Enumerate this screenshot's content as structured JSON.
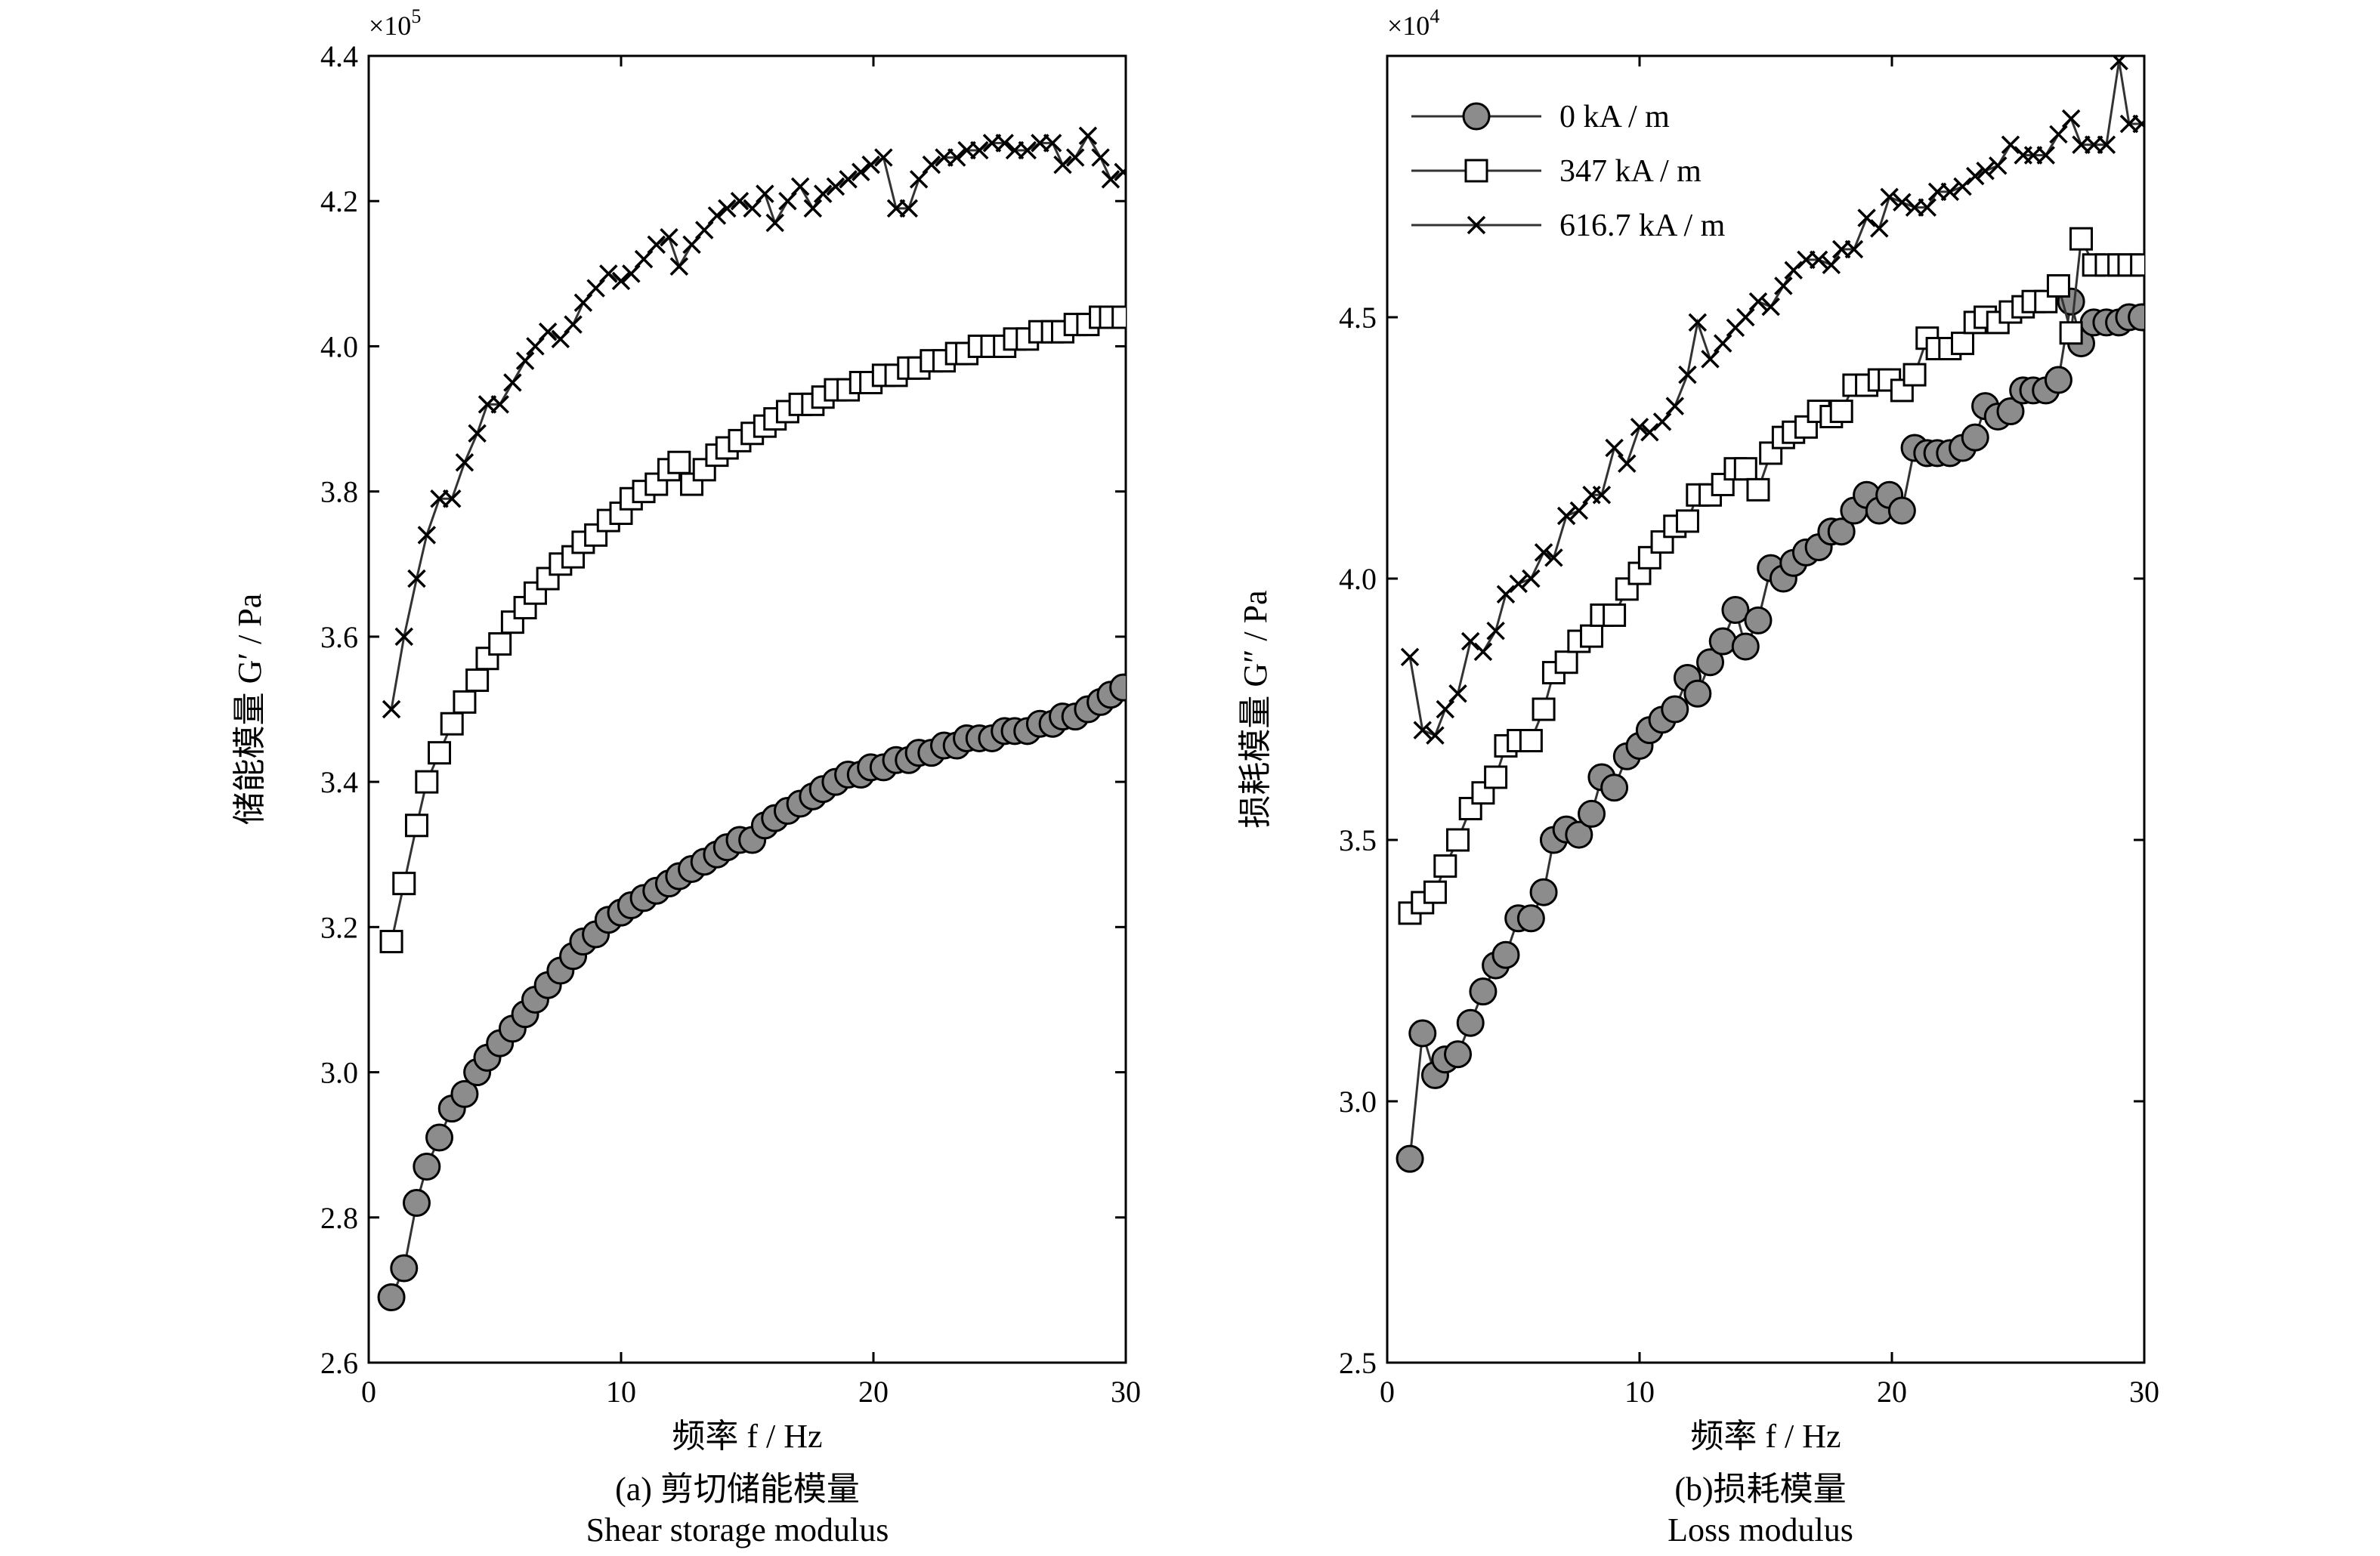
{
  "chart_data": [
    {
      "type": "line",
      "xlabel": "频率 f / Hz",
      "ylabel": "储能模量 G′ / Pa",
      "y_multiplier": "×10",
      "y_multiplier_exp": "5",
      "caption_zh": "(a) 剪切储能模量",
      "caption_en": "Shear storage modulus",
      "xlim": [
        0,
        30
      ],
      "ylim": [
        2.6,
        4.4
      ],
      "xticks": [
        0,
        10,
        20,
        30
      ],
      "yticks": [
        2.6,
        2.8,
        3.0,
        3.2,
        3.4,
        3.6,
        3.8,
        4.0,
        4.2,
        4.4
      ],
      "ytick_labels": [
        "2.6",
        "2.8",
        "3.0",
        "3.2",
        "3.4",
        "3.6",
        "3.8",
        "4.0",
        "4.2",
        "4.4"
      ],
      "grid": false,
      "series": [
        {
          "marker": "circle",
          "x": [
            0.9,
            1.4,
            1.9,
            2.3,
            2.8,
            3.3,
            3.8,
            4.3,
            4.7,
            5.2,
            5.7,
            6.2,
            6.6,
            7.1,
            7.6,
            8.1,
            8.5,
            9.0,
            9.5,
            10.0,
            10.4,
            10.9,
            11.4,
            11.9,
            12.3,
            12.8,
            13.3,
            13.8,
            14.2,
            14.7,
            15.2,
            15.7,
            16.1,
            16.6,
            17.1,
            17.6,
            18.0,
            18.5,
            19.0,
            19.5,
            19.9,
            20.4,
            20.9,
            21.4,
            21.8,
            22.3,
            22.8,
            23.3,
            23.7,
            24.2,
            24.7,
            25.2,
            25.6,
            26.1,
            26.6,
            27.1,
            27.5,
            28.0,
            28.5,
            29.0,
            29.4,
            29.9
          ],
          "values": [
            2.69,
            2.73,
            2.82,
            2.87,
            2.91,
            2.95,
            2.97,
            3.0,
            3.02,
            3.04,
            3.06,
            3.08,
            3.1,
            3.12,
            3.14,
            3.16,
            3.18,
            3.19,
            3.21,
            3.22,
            3.23,
            3.24,
            3.25,
            3.26,
            3.27,
            3.28,
            3.29,
            3.3,
            3.31,
            3.32,
            3.32,
            3.34,
            3.35,
            3.36,
            3.37,
            3.38,
            3.39,
            3.4,
            3.41,
            3.41,
            3.42,
            3.42,
            3.43,
            3.43,
            3.44,
            3.44,
            3.45,
            3.45,
            3.46,
            3.46,
            3.46,
            3.47,
            3.47,
            3.47,
            3.48,
            3.48,
            3.49,
            3.49,
            3.5,
            3.51,
            3.52,
            3.53
          ]
        },
        {
          "marker": "square",
          "x": [
            0.9,
            1.4,
            1.9,
            2.3,
            2.8,
            3.3,
            3.8,
            4.3,
            4.7,
            5.2,
            5.7,
            6.2,
            6.6,
            7.1,
            7.6,
            8.1,
            8.5,
            9.0,
            9.5,
            10.0,
            10.4,
            10.9,
            11.4,
            11.9,
            12.3,
            12.8,
            13.3,
            13.8,
            14.2,
            14.7,
            15.2,
            15.7,
            16.1,
            16.6,
            17.1,
            17.6,
            18.0,
            18.5,
            19.0,
            19.5,
            19.9,
            20.4,
            20.9,
            21.4,
            21.8,
            22.3,
            22.8,
            23.3,
            23.7,
            24.2,
            24.7,
            25.2,
            25.6,
            26.1,
            26.6,
            27.1,
            27.5,
            28.0,
            28.5,
            29.0,
            29.4,
            29.9
          ],
          "values": [
            3.18,
            3.26,
            3.34,
            3.4,
            3.44,
            3.48,
            3.51,
            3.54,
            3.57,
            3.59,
            3.62,
            3.64,
            3.66,
            3.68,
            3.7,
            3.71,
            3.73,
            3.74,
            3.76,
            3.77,
            3.79,
            3.8,
            3.81,
            3.83,
            3.84,
            3.81,
            3.83,
            3.85,
            3.86,
            3.87,
            3.88,
            3.89,
            3.9,
            3.91,
            3.92,
            3.92,
            3.93,
            3.94,
            3.94,
            3.95,
            3.95,
            3.96,
            3.96,
            3.97,
            3.97,
            3.98,
            3.98,
            3.99,
            3.99,
            4.0,
            4.0,
            4.0,
            4.01,
            4.01,
            4.02,
            4.02,
            4.02,
            4.03,
            4.03,
            4.04,
            4.04,
            4.04
          ]
        },
        {
          "marker": "cross",
          "x": [
            0.9,
            1.4,
            1.9,
            2.3,
            2.8,
            3.3,
            3.8,
            4.3,
            4.7,
            5.2,
            5.7,
            6.2,
            6.6,
            7.1,
            7.6,
            8.1,
            8.5,
            9.0,
            9.5,
            10.0,
            10.4,
            10.9,
            11.4,
            11.9,
            12.3,
            12.8,
            13.3,
            13.8,
            14.2,
            14.7,
            15.2,
            15.7,
            16.1,
            16.6,
            17.1,
            17.6,
            18.0,
            18.5,
            19.0,
            19.5,
            19.9,
            20.4,
            20.9,
            21.4,
            21.8,
            22.3,
            22.8,
            23.3,
            23.7,
            24.2,
            24.7,
            25.2,
            25.6,
            26.1,
            26.6,
            27.1,
            27.5,
            28.0,
            28.5,
            29.0,
            29.4,
            29.9
          ],
          "values": [
            3.5,
            3.6,
            3.68,
            3.74,
            3.79,
            3.79,
            3.84,
            3.88,
            3.92,
            3.92,
            3.95,
            3.98,
            4.0,
            4.02,
            4.01,
            4.03,
            4.06,
            4.08,
            4.1,
            4.09,
            4.1,
            4.12,
            4.14,
            4.15,
            4.11,
            4.14,
            4.16,
            4.18,
            4.19,
            4.2,
            4.19,
            4.21,
            4.17,
            4.2,
            4.22,
            4.19,
            4.21,
            4.22,
            4.23,
            4.24,
            4.25,
            4.26,
            4.19,
            4.19,
            4.23,
            4.25,
            4.26,
            4.26,
            4.27,
            4.27,
            4.28,
            4.28,
            4.27,
            4.27,
            4.28,
            4.28,
            4.25,
            4.26,
            4.29,
            4.26,
            4.23,
            4.24
          ]
        }
      ]
    },
    {
      "type": "line",
      "xlabel": "频率 f / Hz",
      "ylabel": "损耗模量 G″ / Pa",
      "y_multiplier": "×10",
      "y_multiplier_exp": "4",
      "caption_zh": "(b)损耗模量",
      "caption_en": "Loss modulus",
      "xlim": [
        0,
        30
      ],
      "ylim": [
        2.5,
        5.0
      ],
      "xticks": [
        0,
        10,
        20,
        30
      ],
      "yticks": [
        2.5,
        3.0,
        3.5,
        4.0,
        4.5
      ],
      "ytick_labels": [
        "2.5",
        "3.0",
        "3.5",
        "4.0",
        "4.5"
      ],
      "grid": false,
      "legend_position": "top-left",
      "legend": [
        "0 kA / m",
        "347 kA / m",
        "616.7 kA / m"
      ],
      "series": [
        {
          "name": "0 kA / m",
          "marker": "circle",
          "x": [
            0.9,
            1.4,
            1.9,
            2.3,
            2.8,
            3.3,
            3.8,
            4.3,
            4.7,
            5.2,
            5.7,
            6.2,
            6.6,
            7.1,
            7.6,
            8.1,
            8.5,
            9.0,
            9.5,
            10.0,
            10.4,
            10.9,
            11.4,
            11.9,
            12.3,
            12.8,
            13.3,
            13.8,
            14.2,
            14.7,
            15.2,
            15.7,
            16.1,
            16.6,
            17.1,
            17.6,
            18.0,
            18.5,
            19.0,
            19.5,
            19.9,
            20.4,
            20.9,
            21.4,
            21.8,
            22.3,
            22.8,
            23.3,
            23.7,
            24.2,
            24.7,
            25.2,
            25.6,
            26.1,
            26.6,
            27.1,
            27.5,
            28.0,
            28.5,
            29.0,
            29.4,
            29.9
          ],
          "values": [
            2.89,
            3.13,
            3.05,
            3.08,
            3.09,
            3.15,
            3.21,
            3.26,
            3.28,
            3.35,
            3.35,
            3.4,
            3.5,
            3.52,
            3.51,
            3.55,
            3.62,
            3.6,
            3.66,
            3.68,
            3.71,
            3.73,
            3.75,
            3.81,
            3.78,
            3.84,
            3.88,
            3.94,
            3.87,
            3.92,
            4.02,
            4.0,
            4.03,
            4.05,
            4.06,
            4.09,
            4.09,
            4.13,
            4.16,
            4.13,
            4.16,
            4.13,
            4.25,
            4.24,
            4.24,
            4.24,
            4.25,
            4.27,
            4.33,
            4.31,
            4.32,
            4.36,
            4.36,
            4.36,
            4.38,
            4.53,
            4.45,
            4.49,
            4.49,
            4.49,
            4.5,
            4.5
          ]
        },
        {
          "name": "347 kA / m",
          "marker": "square",
          "x": [
            0.9,
            1.4,
            1.9,
            2.3,
            2.8,
            3.3,
            3.8,
            4.3,
            4.7,
            5.2,
            5.7,
            6.2,
            6.6,
            7.1,
            7.6,
            8.1,
            8.5,
            9.0,
            9.5,
            10.0,
            10.4,
            10.9,
            11.4,
            11.9,
            12.3,
            12.8,
            13.3,
            13.8,
            14.2,
            14.7,
            15.2,
            15.7,
            16.1,
            16.6,
            17.1,
            17.6,
            18.0,
            18.5,
            19.0,
            19.5,
            19.9,
            20.4,
            20.9,
            21.4,
            21.8,
            22.3,
            22.8,
            23.3,
            23.7,
            24.2,
            24.7,
            25.2,
            25.6,
            26.1,
            26.6,
            27.1,
            27.5,
            28.0,
            28.5,
            29.0,
            29.4,
            29.9
          ],
          "values": [
            3.36,
            3.38,
            3.4,
            3.45,
            3.5,
            3.56,
            3.59,
            3.62,
            3.68,
            3.69,
            3.69,
            3.75,
            3.82,
            3.84,
            3.88,
            3.89,
            3.93,
            3.93,
            3.98,
            4.01,
            4.04,
            4.07,
            4.1,
            4.11,
            4.16,
            4.16,
            4.18,
            4.21,
            4.21,
            4.17,
            4.24,
            4.27,
            4.28,
            4.29,
            4.32,
            4.31,
            4.32,
            4.37,
            4.37,
            4.38,
            4.38,
            4.36,
            4.39,
            4.46,
            4.44,
            4.44,
            4.45,
            4.49,
            4.5,
            4.49,
            4.51,
            4.52,
            4.53,
            4.53,
            4.56,
            4.47,
            4.65,
            4.6,
            4.6,
            4.6,
            4.6,
            4.6
          ]
        },
        {
          "name": "616.7 kA / m",
          "marker": "cross",
          "x": [
            0.9,
            1.4,
            1.9,
            2.3,
            2.8,
            3.3,
            3.8,
            4.3,
            4.7,
            5.2,
            5.7,
            6.2,
            6.6,
            7.1,
            7.6,
            8.1,
            8.5,
            9.0,
            9.5,
            10.0,
            10.4,
            10.9,
            11.4,
            11.9,
            12.3,
            12.8,
            13.3,
            13.8,
            14.2,
            14.7,
            15.2,
            15.7,
            16.1,
            16.6,
            17.1,
            17.6,
            18.0,
            18.5,
            19.0,
            19.5,
            19.9,
            20.4,
            20.9,
            21.4,
            21.8,
            22.3,
            22.8,
            23.3,
            23.7,
            24.2,
            24.7,
            25.2,
            25.6,
            26.1,
            26.6,
            27.1,
            27.5,
            28.0,
            28.5,
            29.0,
            29.4,
            29.9
          ],
          "values": [
            3.85,
            3.71,
            3.7,
            3.75,
            3.78,
            3.88,
            3.86,
            3.9,
            3.97,
            3.99,
            4.0,
            4.05,
            4.04,
            4.12,
            4.13,
            4.16,
            4.16,
            4.25,
            4.22,
            4.29,
            4.28,
            4.3,
            4.33,
            4.39,
            4.49,
            4.42,
            4.45,
            4.48,
            4.5,
            4.53,
            4.52,
            4.56,
            4.59,
            4.61,
            4.61,
            4.6,
            4.63,
            4.63,
            4.69,
            4.67,
            4.73,
            4.72,
            4.71,
            4.71,
            4.74,
            4.74,
            4.75,
            4.77,
            4.78,
            4.79,
            4.83,
            4.81,
            4.81,
            4.81,
            4.85,
            4.88,
            4.83,
            4.83,
            4.83,
            4.99,
            4.87,
            4.87
          ]
        }
      ]
    }
  ]
}
